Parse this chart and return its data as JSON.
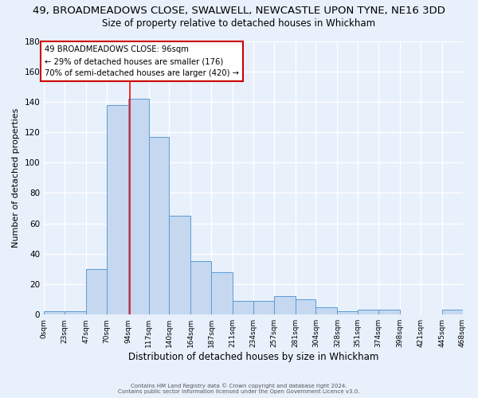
{
  "title_line1": "49, BROADMEADOWS CLOSE, SWALWELL, NEWCASTLE UPON TYNE, NE16 3DD",
  "title_line2": "Size of property relative to detached houses in Whickham",
  "xlabel": "Distribution of detached houses by size in Whickham",
  "ylabel": "Number of detached properties",
  "bin_edges": [
    0,
    23,
    47,
    70,
    94,
    117,
    140,
    164,
    187,
    211,
    234,
    257,
    281,
    304,
    328,
    351,
    374,
    398,
    421,
    445,
    468
  ],
  "bin_labels": [
    "0sqm",
    "23sqm",
    "47sqm",
    "70sqm",
    "94sqm",
    "117sqm",
    "140sqm",
    "164sqm",
    "187sqm",
    "211sqm",
    "234sqm",
    "257sqm",
    "281sqm",
    "304sqm",
    "328sqm",
    "351sqm",
    "374sqm",
    "398sqm",
    "421sqm",
    "445sqm",
    "468sqm"
  ],
  "counts": [
    2,
    2,
    30,
    138,
    142,
    117,
    65,
    35,
    28,
    9,
    9,
    12,
    10,
    5,
    2,
    3,
    3,
    0,
    0,
    3
  ],
  "bar_color": "#c5d8f0",
  "bar_edge_color": "#5b9bd5",
  "background_color": "#e8f0fb",
  "grid_color": "#ffffff",
  "red_line_x": 96,
  "annotation_text_line1": "49 BROADMEADOWS CLOSE: 96sqm",
  "annotation_text_line2": "← 29% of detached houses are smaller (176)",
  "annotation_text_line3": "70% of semi-detached houses are larger (420) →",
  "annotation_box_color": "#ffffff",
  "annotation_box_edge": "#cc0000",
  "ylim": [
    0,
    180
  ],
  "yticks": [
    0,
    20,
    40,
    60,
    80,
    100,
    120,
    140,
    160,
    180
  ],
  "footer_line1": "Contains HM Land Registry data © Crown copyright and database right 2024.",
  "footer_line2": "Contains public sector information licensed under the Open Government Licence v3.0.",
  "title_fontsize": 9.5,
  "subtitle_fontsize": 8.5,
  "xlabel_fontsize": 8.5,
  "ylabel_fontsize": 8
}
